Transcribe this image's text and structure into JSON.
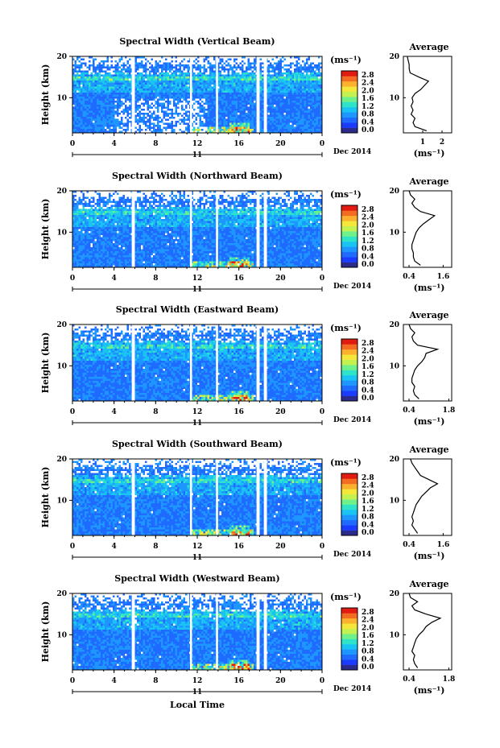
{
  "figure": {
    "xlabel": "Local Time",
    "date_label": "Dec 2014",
    "day_label": "11",
    "ylabel": "Height (km)",
    "unit_label": "(ms⁻¹)",
    "avg_title": "Average",
    "avg_xlabel": "(ms⁻¹)",
    "colorbar_ticks": [
      "2.8",
      "2.4",
      "2.0",
      "1.6",
      "1.2",
      "0.8",
      "0.4",
      "0.0"
    ],
    "colormap": [
      "#2b2b8c",
      "#1a3cff",
      "#1f6bff",
      "#1e96ff",
      "#19c4f5",
      "#2ee3c8",
      "#6ef08a",
      "#c3f250",
      "#f5e63a",
      "#fbb02e",
      "#f46c22",
      "#e21b12"
    ]
  },
  "chart_data": [
    {
      "type": "heatmap",
      "title": "Spectral Width (Vertical Beam)",
      "x_ticks": [
        "0",
        "4",
        "8",
        "12",
        "16",
        "20",
        "0"
      ],
      "y_ticks": [
        "20",
        "10"
      ],
      "xlim": [
        0,
        24
      ],
      "ylim": [
        1.5,
        20
      ],
      "clim": [
        0,
        3.0
      ],
      "avg": {
        "xlim": [
          0,
          2.5
        ],
        "x_ticks": [
          "1",
          "2"
        ],
        "y_ticks": [
          "20",
          "10"
        ],
        "heights": [
          2,
          3,
          4,
          5,
          6,
          7,
          8,
          9,
          10,
          11,
          12,
          13,
          14,
          15,
          16,
          17,
          18,
          19,
          20
        ],
        "values": [
          1.2,
          0.6,
          0.5,
          0.6,
          0.4,
          0.5,
          0.4,
          0.5,
          0.45,
          0.6,
          0.9,
          1.1,
          1.3,
          0.8,
          0.35,
          0.3,
          0.3,
          0.25,
          0.2
        ]
      }
    },
    {
      "type": "heatmap",
      "title": "Spectral Width (Northward Beam)",
      "x_ticks": [
        "0",
        "4",
        "8",
        "12",
        "16",
        "20",
        "0"
      ],
      "y_ticks": [
        "20",
        "10"
      ],
      "xlim": [
        0,
        24
      ],
      "ylim": [
        1.5,
        20
      ],
      "clim": [
        0,
        3.0
      ],
      "avg": {
        "xlim": [
          0.2,
          1.9
        ],
        "x_ticks": [
          "0.4",
          "1.6"
        ],
        "y_ticks": [
          "20",
          "10"
        ],
        "heights": [
          2,
          3,
          4,
          5,
          6,
          7,
          8,
          9,
          10,
          11,
          12,
          13,
          14,
          15,
          16,
          17,
          18,
          19,
          20
        ],
        "values": [
          0.8,
          0.6,
          0.55,
          0.55,
          0.5,
          0.5,
          0.55,
          0.6,
          0.65,
          0.75,
          0.9,
          1.1,
          1.3,
          0.8,
          0.6,
          0.5,
          0.6,
          0.45,
          0.4
        ]
      }
    },
    {
      "type": "heatmap",
      "title": "Spectral Width (Eastward Beam)",
      "x_ticks": [
        "0",
        "4",
        "8",
        "12",
        "16",
        "20",
        "0"
      ],
      "y_ticks": [
        "20",
        "10"
      ],
      "xlim": [
        0,
        24
      ],
      "ylim": [
        1.5,
        20
      ],
      "clim": [
        0,
        3.0
      ],
      "avg": {
        "xlim": [
          0.2,
          1.9
        ],
        "x_ticks": [
          "0.4",
          "1.8"
        ],
        "y_ticks": [
          "20",
          "10"
        ],
        "heights": [
          2,
          3,
          4,
          5,
          6,
          7,
          8,
          9,
          10,
          11,
          12,
          13,
          14,
          15,
          16,
          17,
          18,
          19,
          20
        ],
        "values": [
          0.75,
          0.6,
          0.55,
          0.6,
          0.5,
          0.5,
          0.55,
          0.6,
          0.7,
          0.85,
          0.95,
          1.0,
          1.4,
          0.7,
          0.55,
          0.5,
          0.6,
          0.45,
          0.4
        ]
      }
    },
    {
      "type": "heatmap",
      "title": "Spectral Width (Southward Beam)",
      "x_ticks": [
        "0",
        "4",
        "8",
        "12",
        "16",
        "20",
        "0"
      ],
      "y_ticks": [
        "20",
        "10"
      ],
      "xlim": [
        0,
        24
      ],
      "ylim": [
        1.5,
        20
      ],
      "clim": [
        0,
        3.0
      ],
      "avg": {
        "xlim": [
          0.2,
          1.9
        ],
        "x_ticks": [
          "0.4",
          "1.6"
        ],
        "y_ticks": [
          "20",
          "10"
        ],
        "heights": [
          2,
          3,
          4,
          5,
          6,
          7,
          8,
          9,
          10,
          11,
          12,
          13,
          14,
          15,
          16,
          17,
          18,
          19,
          20
        ],
        "values": [
          0.7,
          0.6,
          0.5,
          0.55,
          0.5,
          0.55,
          0.6,
          0.65,
          0.75,
          0.85,
          1.0,
          1.15,
          1.4,
          1.1,
          0.8,
          0.7,
          0.6,
          0.5,
          0.45
        ]
      }
    },
    {
      "type": "heatmap",
      "title": "Spectral Width (Westward Beam)",
      "x_ticks": [
        "0",
        "4",
        "8",
        "12",
        "16",
        "20",
        "0"
      ],
      "y_ticks": [
        "20",
        "10"
      ],
      "xlim": [
        0,
        24
      ],
      "ylim": [
        1.5,
        20
      ],
      "clim": [
        0,
        3.0
      ],
      "avg": {
        "xlim": [
          0.2,
          1.9
        ],
        "x_ticks": [
          "0.4",
          "1.8"
        ],
        "y_ticks": [
          "20",
          "10"
        ],
        "heights": [
          2,
          3,
          4,
          5,
          6,
          7,
          8,
          9,
          10,
          11,
          12,
          13,
          14,
          15,
          16,
          17,
          18,
          19,
          20
        ],
        "values": [
          0.7,
          0.6,
          0.55,
          0.6,
          0.5,
          0.55,
          0.6,
          0.65,
          0.75,
          0.9,
          1.0,
          1.2,
          1.5,
          1.0,
          0.6,
          0.5,
          0.7,
          0.45,
          0.4
        ]
      }
    }
  ]
}
